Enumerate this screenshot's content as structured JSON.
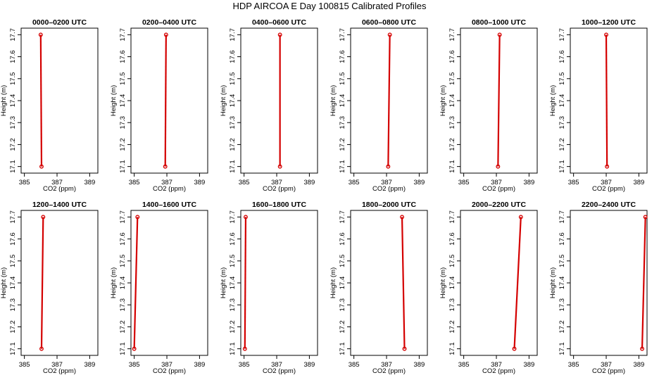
{
  "title": "HDP AIRCOA E  Day 100815  Calibrated Profiles",
  "colors": {
    "profile": "#d40000",
    "frame": "#000000"
  },
  "chart_data": {
    "type": "line",
    "grid": false,
    "xlabel": "CO2 (ppm)",
    "ylabel": "Height (m)",
    "xlim": [
      384.8,
      389.5
    ],
    "ylim": [
      17.07,
      17.73
    ],
    "xticks": [
      "385",
      "387",
      "389"
    ],
    "yticks": [
      "17.1",
      "17.2",
      "17.3",
      "17.4",
      "17.5",
      "17.6",
      "17.7"
    ],
    "panels": [
      {
        "title": "0000–0200 UTC",
        "points": [
          {
            "x": 386.05,
            "y": 17.1
          },
          {
            "x": 386.0,
            "y": 17.7
          }
        ]
      },
      {
        "title": "0200–0400 UTC",
        "points": [
          {
            "x": 386.9,
            "y": 17.1
          },
          {
            "x": 386.95,
            "y": 17.7
          }
        ]
      },
      {
        "title": "0400–0600 UTC",
        "points": [
          {
            "x": 387.2,
            "y": 17.1
          },
          {
            "x": 387.2,
            "y": 17.7
          }
        ]
      },
      {
        "title": "0600–0800 UTC",
        "points": [
          {
            "x": 387.1,
            "y": 17.1
          },
          {
            "x": 387.2,
            "y": 17.7
          }
        ]
      },
      {
        "title": "0800–1000 UTC",
        "points": [
          {
            "x": 387.1,
            "y": 17.1
          },
          {
            "x": 387.2,
            "y": 17.7
          }
        ]
      },
      {
        "title": "1000–1200 UTC",
        "points": [
          {
            "x": 387.05,
            "y": 17.1
          },
          {
            "x": 387.0,
            "y": 17.7
          }
        ]
      },
      {
        "title": "1200–1400 UTC",
        "points": [
          {
            "x": 386.05,
            "y": 17.1
          },
          {
            "x": 386.15,
            "y": 17.7
          }
        ]
      },
      {
        "title": "1400–1600 UTC",
        "points": [
          {
            "x": 385.0,
            "y": 17.1
          },
          {
            "x": 385.2,
            "y": 17.7
          }
        ]
      },
      {
        "title": "1600–1800 UTC",
        "points": [
          {
            "x": 385.05,
            "y": 17.1
          },
          {
            "x": 385.1,
            "y": 17.7
          }
        ]
      },
      {
        "title": "1800–2000 UTC",
        "points": [
          {
            "x": 388.1,
            "y": 17.1
          },
          {
            "x": 387.95,
            "y": 17.7
          }
        ]
      },
      {
        "title": "2000–2200 UTC",
        "points": [
          {
            "x": 388.1,
            "y": 17.1
          },
          {
            "x": 388.5,
            "y": 17.7
          }
        ]
      },
      {
        "title": "2200–2400 UTC",
        "points": [
          {
            "x": 389.2,
            "y": 17.1
          },
          {
            "x": 389.4,
            "y": 17.7
          }
        ]
      }
    ]
  }
}
